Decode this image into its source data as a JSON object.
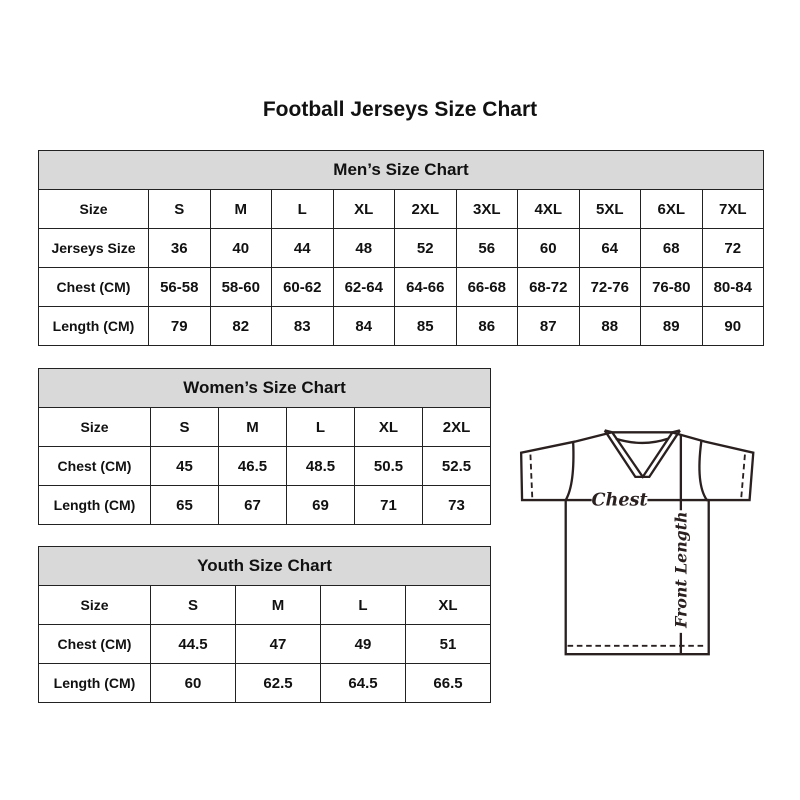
{
  "title": "Football Jerseys Size Chart",
  "men": {
    "title": "Men’s Size Chart",
    "rows": [
      [
        "Size",
        "S",
        "M",
        "L",
        "XL",
        "2XL",
        "3XL",
        "4XL",
        "5XL",
        "6XL",
        "7XL"
      ],
      [
        "Jerseys Size",
        "36",
        "40",
        "44",
        "48",
        "52",
        "56",
        "60",
        "64",
        "68",
        "72"
      ],
      [
        "Chest (CM)",
        "56-58",
        "58-60",
        "60-62",
        "62-64",
        "64-66",
        "66-68",
        "68-72",
        "72-76",
        "76-80",
        "80-84"
      ],
      [
        "Length (CM)",
        "79",
        "82",
        "83",
        "84",
        "85",
        "86",
        "87",
        "88",
        "89",
        "90"
      ]
    ]
  },
  "women": {
    "title": "Women’s Size Chart",
    "rows": [
      [
        "Size",
        "S",
        "M",
        "L",
        "XL",
        "2XL"
      ],
      [
        "Chest (CM)",
        "45",
        "46.5",
        "48.5",
        "50.5",
        "52.5"
      ],
      [
        "Length (CM)",
        "65",
        "67",
        "69",
        "71",
        "73"
      ]
    ]
  },
  "youth": {
    "title": "Youth Size Chart",
    "rows": [
      [
        "Size",
        "S",
        "M",
        "L",
        "XL"
      ],
      [
        "Chest (CM)",
        "44.5",
        "47",
        "49",
        "51"
      ],
      [
        "Length (CM)",
        "60",
        "62.5",
        "64.5",
        "66.5"
      ]
    ]
  },
  "diagram": {
    "chest_label": "Chest",
    "length_label": "Front Length"
  }
}
